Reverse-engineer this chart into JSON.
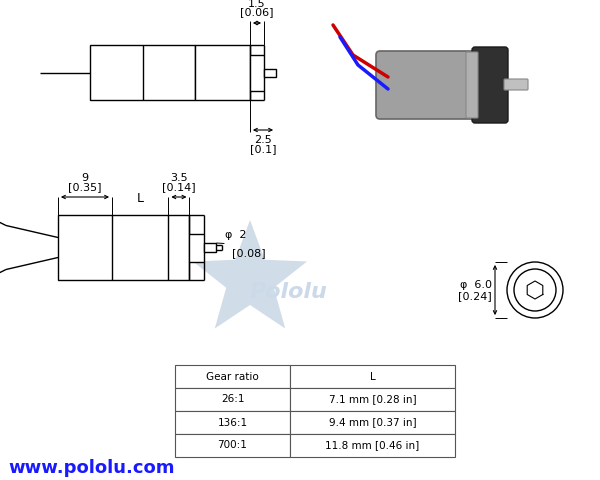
{
  "bg_color": "#ffffff",
  "website": "www.pololu.com",
  "website_color": "#1a1aff",
  "line_color": "#000000",
  "watermark_color": "#ccd9e8",
  "star_color": "#d0dce8",
  "table": {
    "headers": [
      "Gear ratio",
      "L"
    ],
    "rows": [
      [
        "26:1",
        "7.1 mm [0.28 in]"
      ],
      [
        "136:1",
        "9.4 mm [0.37 in]"
      ],
      [
        "700:1",
        "11.8 mm [0.46 in]"
      ]
    ]
  },
  "dim_15": "1.5",
  "dim_006": "[0.06]",
  "dim_25": "2.5",
  "dim_01": "[0.1]",
  "dim_9": "9",
  "dim_035": "[0.35]",
  "dim_L": "L",
  "dim_35": "3.5",
  "dim_014": "[0.14]",
  "dim_2": "2",
  "dim_008": "[0.08]",
  "dim_phi": "φ",
  "dim_60": "6.0",
  "dim_024": "[0.24]"
}
